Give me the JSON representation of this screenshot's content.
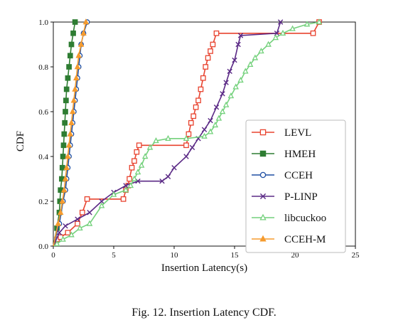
{
  "chart_data": {
    "type": "line",
    "xlabel": "Insertion Latency(s)",
    "ylabel": "CDF",
    "xlim": [
      0,
      25
    ],
    "ylim": [
      0.0,
      1.0
    ],
    "x_ticks": [
      0,
      5,
      10,
      15,
      20,
      25
    ],
    "y_ticks": [
      0.0,
      0.2,
      0.4,
      0.6,
      0.8,
      1.0
    ],
    "y_tick_labels": [
      "0.0",
      "0.2",
      "0.4",
      "0.6",
      "0.8",
      "1.0"
    ],
    "grid": false,
    "legend_position": "center-right",
    "series": [
      {
        "name": "LEVL",
        "color": "#e8432f",
        "marker": "square-open",
        "points": [
          [
            0,
            0
          ],
          [
            0.3,
            0.03
          ],
          [
            0.6,
            0.04
          ],
          [
            1.2,
            0.06
          ],
          [
            2.0,
            0.1
          ],
          [
            2.4,
            0.15
          ],
          [
            2.8,
            0.21
          ],
          [
            5.8,
            0.21
          ],
          [
            6.0,
            0.25
          ],
          [
            6.2,
            0.27
          ],
          [
            6.3,
            0.3
          ],
          [
            6.5,
            0.35
          ],
          [
            6.7,
            0.38
          ],
          [
            6.9,
            0.42
          ],
          [
            7.1,
            0.45
          ],
          [
            11.0,
            0.45
          ],
          [
            11.2,
            0.5
          ],
          [
            11.4,
            0.55
          ],
          [
            11.6,
            0.58
          ],
          [
            11.8,
            0.62
          ],
          [
            12.0,
            0.65
          ],
          [
            12.2,
            0.7
          ],
          [
            12.4,
            0.75
          ],
          [
            12.6,
            0.8
          ],
          [
            12.8,
            0.84
          ],
          [
            13.0,
            0.87
          ],
          [
            13.2,
            0.9
          ],
          [
            13.5,
            0.95
          ],
          [
            21.5,
            0.95
          ],
          [
            22.0,
            1.0
          ]
        ]
      },
      {
        "name": "HMEH",
        "color": "#2e7d32",
        "marker": "square-filled",
        "points": [
          [
            0,
            0
          ],
          [
            0.3,
            0.08
          ],
          [
            0.5,
            0.15
          ],
          [
            0.55,
            0.2
          ],
          [
            0.6,
            0.25
          ],
          [
            0.7,
            0.3
          ],
          [
            0.75,
            0.35
          ],
          [
            0.8,
            0.4
          ],
          [
            0.85,
            0.45
          ],
          [
            0.9,
            0.5
          ],
          [
            0.95,
            0.55
          ],
          [
            1.0,
            0.6
          ],
          [
            1.05,
            0.65
          ],
          [
            1.1,
            0.7
          ],
          [
            1.2,
            0.75
          ],
          [
            1.3,
            0.8
          ],
          [
            1.4,
            0.85
          ],
          [
            1.5,
            0.9
          ],
          [
            1.65,
            0.95
          ],
          [
            1.8,
            1.0
          ]
        ]
      },
      {
        "name": "CCEH",
        "color": "#1f4fa3",
        "marker": "circle-open",
        "points": [
          [
            0,
            0
          ],
          [
            0.5,
            0.1
          ],
          [
            0.8,
            0.2
          ],
          [
            1.0,
            0.25
          ],
          [
            1.1,
            0.3
          ],
          [
            1.2,
            0.35
          ],
          [
            1.3,
            0.4
          ],
          [
            1.4,
            0.45
          ],
          [
            1.5,
            0.5
          ],
          [
            1.6,
            0.55
          ],
          [
            1.7,
            0.6
          ],
          [
            1.8,
            0.65
          ],
          [
            1.9,
            0.7
          ],
          [
            2.0,
            0.75
          ],
          [
            2.1,
            0.8
          ],
          [
            2.2,
            0.85
          ],
          [
            2.3,
            0.9
          ],
          [
            2.5,
            0.95
          ],
          [
            2.8,
            1.0
          ]
        ]
      },
      {
        "name": "P-LINP",
        "color": "#5b2a86",
        "marker": "x",
        "points": [
          [
            0,
            0
          ],
          [
            0.5,
            0.06
          ],
          [
            1.0,
            0.09
          ],
          [
            2.0,
            0.12
          ],
          [
            3.0,
            0.15
          ],
          [
            4.0,
            0.2
          ],
          [
            5.0,
            0.24
          ],
          [
            6.0,
            0.27
          ],
          [
            7.0,
            0.29
          ],
          [
            9.0,
            0.29
          ],
          [
            9.5,
            0.31
          ],
          [
            10.0,
            0.35
          ],
          [
            11.0,
            0.4
          ],
          [
            11.5,
            0.44
          ],
          [
            12.0,
            0.48
          ],
          [
            12.5,
            0.52
          ],
          [
            13.0,
            0.56
          ],
          [
            13.5,
            0.62
          ],
          [
            14.0,
            0.68
          ],
          [
            14.3,
            0.73
          ],
          [
            14.6,
            0.78
          ],
          [
            15.0,
            0.83
          ],
          [
            15.3,
            0.9
          ],
          [
            15.5,
            0.94
          ],
          [
            18.5,
            0.95
          ],
          [
            18.8,
            1.0
          ]
        ]
      },
      {
        "name": "libcuckoo",
        "color": "#74d17c",
        "marker": "triangle-open",
        "points": [
          [
            0,
            0
          ],
          [
            0.3,
            0.01
          ],
          [
            0.8,
            0.03
          ],
          [
            1.5,
            0.05
          ],
          [
            2.2,
            0.08
          ],
          [
            3.0,
            0.1
          ],
          [
            4.0,
            0.18
          ],
          [
            5.0,
            0.23
          ],
          [
            6.0,
            0.25
          ],
          [
            6.4,
            0.27
          ],
          [
            6.7,
            0.3
          ],
          [
            7.0,
            0.33
          ],
          [
            7.3,
            0.36
          ],
          [
            7.6,
            0.4
          ],
          [
            8.0,
            0.44
          ],
          [
            8.5,
            0.47
          ],
          [
            9.5,
            0.48
          ],
          [
            11.0,
            0.48
          ],
          [
            12.5,
            0.49
          ],
          [
            13.0,
            0.51
          ],
          [
            13.4,
            0.54
          ],
          [
            13.7,
            0.57
          ],
          [
            14.0,
            0.6
          ],
          [
            14.3,
            0.63
          ],
          [
            14.7,
            0.67
          ],
          [
            15.1,
            0.71
          ],
          [
            15.5,
            0.74
          ],
          [
            15.9,
            0.78
          ],
          [
            16.3,
            0.81
          ],
          [
            16.7,
            0.84
          ],
          [
            17.2,
            0.87
          ],
          [
            17.8,
            0.9
          ],
          [
            18.4,
            0.93
          ],
          [
            19.0,
            0.95
          ],
          [
            19.8,
            0.97
          ],
          [
            21.0,
            0.99
          ],
          [
            22.0,
            1.0
          ]
        ]
      },
      {
        "name": "CCEH-M",
        "color": "#f59b2e",
        "marker": "triangle-filled",
        "points": [
          [
            0,
            0
          ],
          [
            0.4,
            0.1
          ],
          [
            0.6,
            0.15
          ],
          [
            0.75,
            0.2
          ],
          [
            0.9,
            0.25
          ],
          [
            1.0,
            0.3
          ],
          [
            1.1,
            0.35
          ],
          [
            1.2,
            0.4
          ],
          [
            1.3,
            0.45
          ],
          [
            1.4,
            0.5
          ],
          [
            1.5,
            0.55
          ],
          [
            1.6,
            0.6
          ],
          [
            1.7,
            0.65
          ],
          [
            1.8,
            0.7
          ],
          [
            1.9,
            0.75
          ],
          [
            2.0,
            0.8
          ],
          [
            2.1,
            0.85
          ],
          [
            2.3,
            0.9
          ],
          [
            2.5,
            0.95
          ],
          [
            2.7,
            1.0
          ]
        ]
      }
    ]
  },
  "caption": "Fig. 12.  Insertion Latency CDF."
}
